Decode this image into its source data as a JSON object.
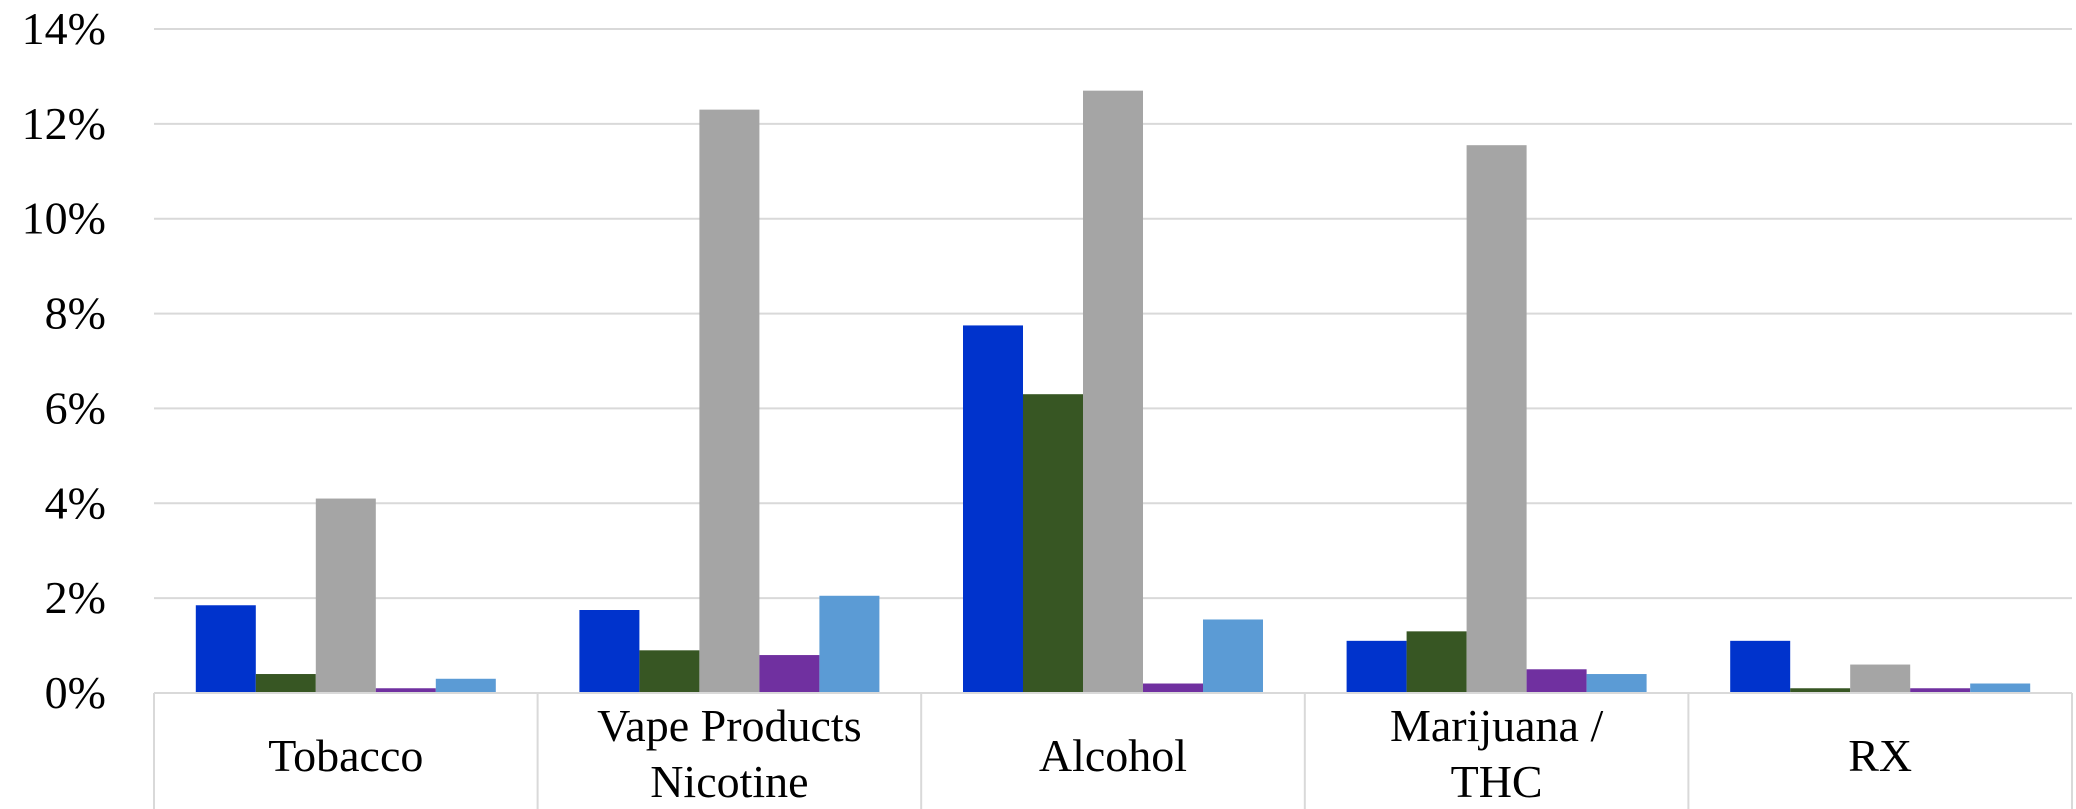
{
  "chart_data": {
    "type": "bar",
    "categories": [
      {
        "label_lines": [
          "Tobacco"
        ]
      },
      {
        "label_lines": [
          "Vape Products",
          "Nicotine"
        ]
      },
      {
        "label_lines": [
          "Alcohol"
        ]
      },
      {
        "label_lines": [
          "Marijuana /",
          "THC"
        ]
      },
      {
        "label_lines": [
          "RX"
        ]
      }
    ],
    "series": [
      {
        "color": "#0033cc",
        "values": [
          1.85,
          1.75,
          7.75,
          1.1,
          1.1
        ]
      },
      {
        "color": "#375623",
        "values": [
          0.4,
          0.9,
          6.3,
          1.3,
          0.1
        ]
      },
      {
        "color": "#a5a5a5",
        "values": [
          4.1,
          12.3,
          12.7,
          11.55,
          0.6
        ]
      },
      {
        "color": "#7030a0",
        "values": [
          0.1,
          0.8,
          0.2,
          0.5,
          0.1
        ]
      },
      {
        "color": "#5b9bd5",
        "values": [
          0.3,
          2.05,
          1.55,
          0.4,
          0.2
        ]
      }
    ],
    "ylim": [
      0,
      14
    ],
    "yticks": [
      "0%",
      "2%",
      "4%",
      "6%",
      "8%",
      "10%",
      "12%",
      "14%"
    ],
    "ytick_values": [
      0,
      2,
      4,
      6,
      8,
      10,
      12,
      14
    ],
    "y_unit": "%",
    "grid": true,
    "legend": "none",
    "title": "",
    "xlabel": "",
    "ylabel": ""
  }
}
